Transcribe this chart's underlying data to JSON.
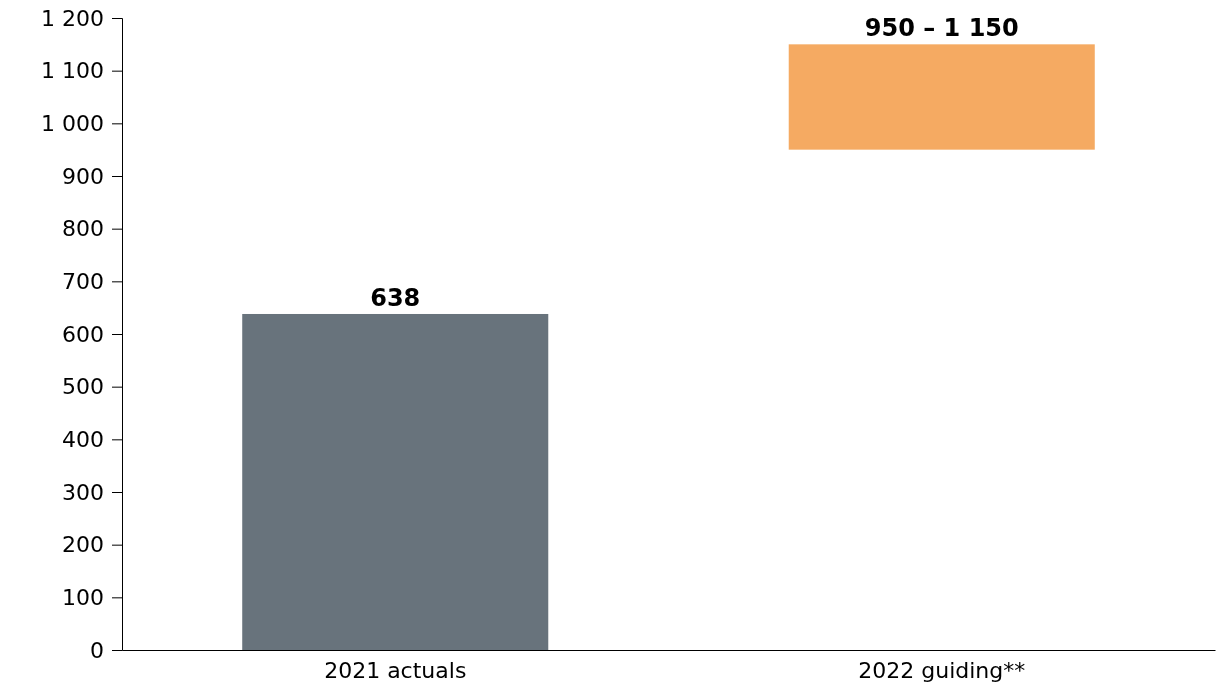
{
  "chart_data": {
    "type": "bar",
    "categories": [
      "2021 actuals",
      "2022 guiding**"
    ],
    "values": [
      638,
      200
    ],
    "base": [
      0,
      950
    ],
    "colors": [
      "#68737c",
      "#f5aa62"
    ],
    "value_labels": [
      "638",
      null
    ],
    "annotations": [
      {
        "text": "950 – 1 150",
        "x": "2022 guiding**",
        "y": 1150
      }
    ],
    "ylim": [
      0,
      1200
    ],
    "yticks": [
      0,
      100,
      200,
      300,
      400,
      500,
      600,
      700,
      800,
      900,
      {
        "value": 1000,
        "label": "1 000"
      },
      {
        "value": 1100,
        "label": "1 100"
      },
      {
        "value": 1200,
        "label": "1 200"
      }
    ],
    "grid": false
  }
}
